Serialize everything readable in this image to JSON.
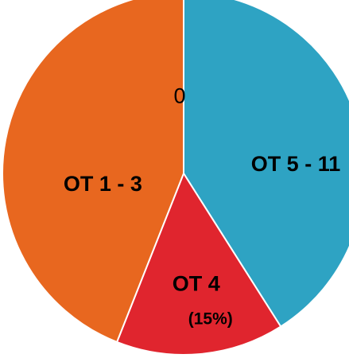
{
  "chart_data": {
    "type": "pie",
    "categories": [
      "OT 5 - 11",
      "OT 4",
      "OT 1 - 3",
      null
    ],
    "values": [
      41,
      15,
      44,
      0
    ],
    "value_labels": [
      null,
      "(15%)",
      null,
      "0"
    ],
    "colors": [
      "#2ea3c3",
      "#e0252e",
      "#e8671f",
      "#999999"
    ],
    "start_angle": 0,
    "direction": "clockwise"
  }
}
